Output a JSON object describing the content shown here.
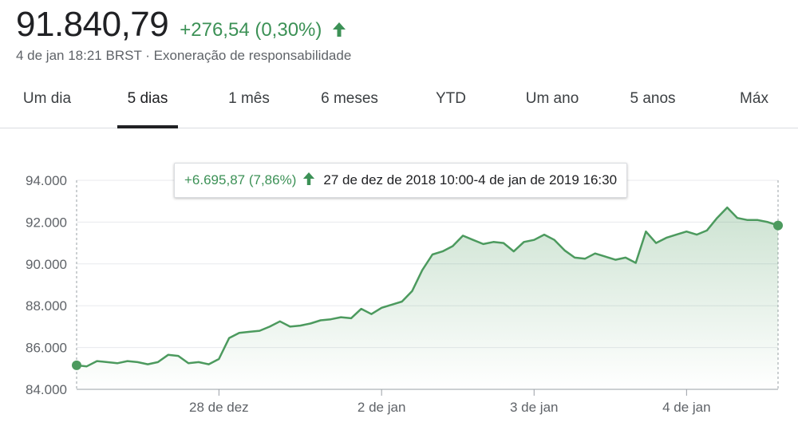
{
  "quote": {
    "price": "91.840,79",
    "change": "+276,54 (0,30%)",
    "timestamp": "4 de jan 18:21 BRST",
    "separator": "·",
    "disclaimer": "Exoneração de responsabilidade"
  },
  "tabs": [
    {
      "label": "Um dia",
      "active": false
    },
    {
      "label": "5 dias",
      "active": true
    },
    {
      "label": "1 mês",
      "active": false
    },
    {
      "label": "6 meses",
      "active": false
    },
    {
      "label": "YTD",
      "active": false
    },
    {
      "label": "Um ano",
      "active": false
    },
    {
      "label": "5 anos",
      "active": false
    },
    {
      "label": "Máx",
      "active": false
    }
  ],
  "tooltip": {
    "change": "+6.695,87 (7,86%)",
    "range": "27 de dez de 2018 10:00-4 de jan de 2019 16:30"
  },
  "colors": {
    "line": "#4c9a5e",
    "positive": "#3c9156",
    "grid": "#e8eaed"
  },
  "chart_data": {
    "type": "area",
    "ylim": [
      84000,
      94000
    ],
    "yticks": [
      {
        "value": 84000,
        "label": "84.000"
      },
      {
        "value": 86000,
        "label": "86.000"
      },
      {
        "value": 88000,
        "label": "88.000"
      },
      {
        "value": 90000,
        "label": "90.000"
      },
      {
        "value": 92000,
        "label": "92.000"
      },
      {
        "value": 94000,
        "label": "94.000"
      }
    ],
    "x_ticks": [
      {
        "index": 14,
        "label": "28 de dez"
      },
      {
        "index": 30,
        "label": "2 de jan"
      },
      {
        "index": 45,
        "label": "3 de jan"
      },
      {
        "index": 60,
        "label": "4 de jan"
      }
    ],
    "series": [
      {
        "values": [
          85150,
          85100,
          85350,
          85300,
          85250,
          85350,
          85300,
          85200,
          85300,
          85650,
          85600,
          85250,
          85300,
          85200,
          85450,
          86450,
          86700,
          86750,
          86800,
          87000,
          87250,
          87000,
          87050,
          87150,
          87300,
          87350,
          87450,
          87400,
          87850,
          87600,
          87900,
          88050,
          88200,
          88700,
          89700,
          90450,
          90600,
          90850,
          91350,
          91150,
          90950,
          91050,
          91000,
          90600,
          91050,
          91150,
          91400,
          91150,
          90650,
          90300,
          90250,
          90500,
          90350,
          90200,
          90300,
          90050,
          91550,
          91000,
          91250,
          91400,
          91550,
          91400,
          91600,
          92200,
          92700,
          92200,
          92100,
          92100,
          92000,
          91840
        ]
      }
    ]
  }
}
